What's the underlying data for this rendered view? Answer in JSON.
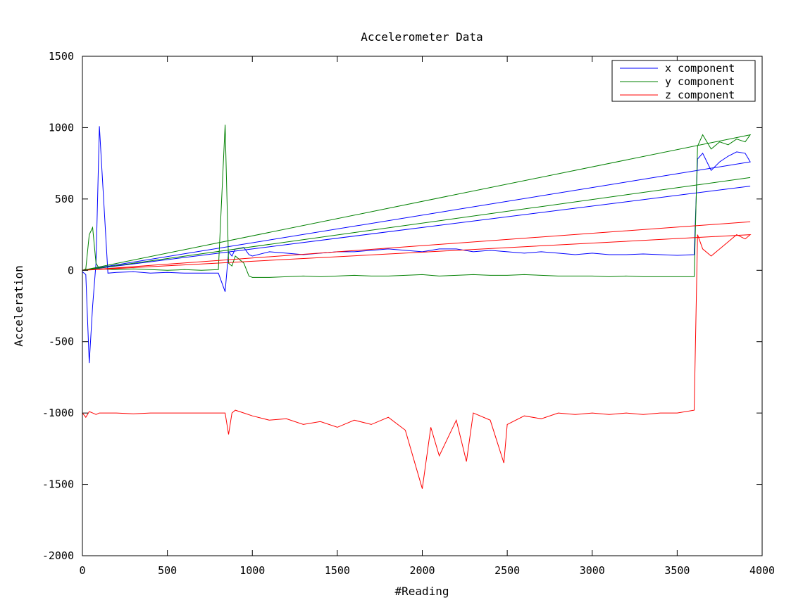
{
  "chart_data": {
    "type": "line",
    "title": "Accelerometer Data",
    "xlabel": "#Reading",
    "ylabel": "Acceleration",
    "xlim": [
      0,
      4000
    ],
    "ylim": [
      -2000,
      1500
    ],
    "xticks": [
      0,
      500,
      1000,
      1500,
      2000,
      2500,
      3000,
      3500,
      4000
    ],
    "yticks": [
      -2000,
      -1500,
      -1000,
      -500,
      0,
      500,
      1000,
      1500
    ],
    "grid": false,
    "legend_position": "top-right",
    "series": [
      {
        "name": "x component",
        "color": "#0000ff",
        "x": [
          0,
          20,
          40,
          60,
          80,
          100,
          150,
          200,
          300,
          400,
          500,
          600,
          700,
          800,
          840,
          860,
          880,
          900,
          950,
          980,
          1000,
          1100,
          1200,
          1300,
          1400,
          1500,
          1600,
          1700,
          1800,
          1900,
          2000,
          2100,
          2200,
          2300,
          2400,
          2500,
          2600,
          2700,
          2800,
          2900,
          3000,
          3100,
          3200,
          3300,
          3400,
          3500,
          3600,
          3620,
          3650,
          3700,
          3750,
          3800,
          3850,
          3900,
          3930,
          0,
          3930
        ],
        "y": [
          -10,
          -30,
          -650,
          -250,
          50,
          1010,
          -20,
          -15,
          -10,
          -20,
          -15,
          -20,
          -20,
          -20,
          -150,
          130,
          100,
          150,
          160,
          110,
          100,
          130,
          120,
          110,
          120,
          130,
          130,
          140,
          150,
          140,
          130,
          150,
          150,
          130,
          140,
          130,
          120,
          130,
          120,
          110,
          120,
          110,
          110,
          115,
          110,
          105,
          110,
          780,
          820,
          700,
          760,
          800,
          830,
          820,
          760,
          0,
          590
        ]
      },
      {
        "name": "y component",
        "color": "#008000",
        "x": [
          0,
          20,
          40,
          60,
          80,
          100,
          200,
          300,
          400,
          500,
          600,
          700,
          800,
          840,
          860,
          880,
          900,
          950,
          980,
          1000,
          1100,
          1200,
          1300,
          1400,
          1500,
          1600,
          1700,
          1800,
          1900,
          2000,
          2100,
          2200,
          2300,
          2400,
          2500,
          2600,
          2700,
          2800,
          2900,
          3000,
          3100,
          3200,
          3300,
          3400,
          3500,
          3600,
          3620,
          3650,
          3700,
          3750,
          3800,
          3850,
          3900,
          3930,
          0,
          3930
        ],
        "y": [
          0,
          10,
          250,
          300,
          50,
          10,
          5,
          10,
          5,
          0,
          5,
          0,
          5,
          1020,
          50,
          30,
          100,
          50,
          -40,
          -50,
          -50,
          -45,
          -40,
          -45,
          -40,
          -35,
          -40,
          -40,
          -35,
          -30,
          -40,
          -35,
          -30,
          -35,
          -35,
          -30,
          -35,
          -40,
          -40,
          -40,
          -45,
          -40,
          -45,
          -45,
          -45,
          -45,
          870,
          950,
          850,
          900,
          880,
          920,
          900,
          950,
          0,
          650
        ]
      },
      {
        "name": "z component",
        "color": "#ff0000",
        "x": [
          0,
          20,
          40,
          60,
          80,
          100,
          200,
          300,
          400,
          500,
          600,
          700,
          800,
          840,
          860,
          880,
          900,
          950,
          1000,
          1100,
          1200,
          1300,
          1400,
          1500,
          1600,
          1700,
          1800,
          1900,
          2000,
          2050,
          2100,
          2200,
          2260,
          2300,
          2400,
          2480,
          2500,
          2600,
          2700,
          2800,
          2900,
          3000,
          3100,
          3200,
          3300,
          3400,
          3500,
          3600,
          3620,
          3650,
          3700,
          3750,
          3800,
          3850,
          3900,
          3930,
          0,
          3930
        ],
        "y": [
          -1000,
          -1030,
          -990,
          -1000,
          -1010,
          -1000,
          -1000,
          -1005,
          -1000,
          -1000,
          -1000,
          -1000,
          -1000,
          -1000,
          -1150,
          -1000,
          -980,
          -1000,
          -1020,
          -1050,
          -1040,
          -1080,
          -1060,
          -1100,
          -1050,
          -1080,
          -1030,
          -1120,
          -1530,
          -1100,
          -1300,
          -1050,
          -1340,
          -1000,
          -1050,
          -1350,
          -1080,
          -1020,
          -1040,
          -1000,
          -1010,
          -1000,
          -1010,
          -1000,
          -1010,
          -1000,
          -1000,
          -980,
          250,
          150,
          100,
          150,
          200,
          250,
          220,
          250,
          0,
          340
        ]
      }
    ]
  }
}
